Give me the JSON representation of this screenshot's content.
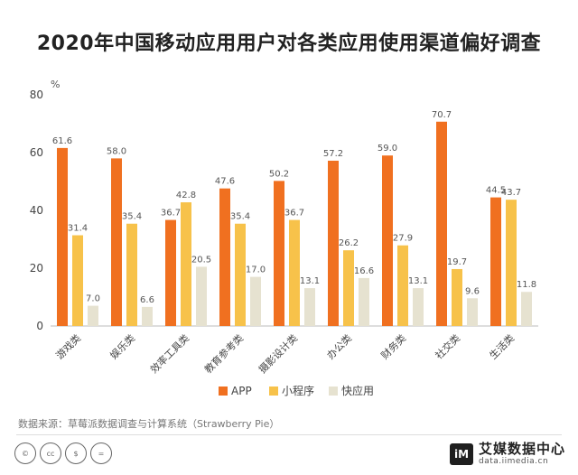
{
  "title": "2020年中国移动应用用户对各类应用使用渠道偏好调查",
  "source_note": "数据来源：草莓派数据调查与计算系统（Strawberry  Pie）",
  "brand": {
    "name": "艾媒数据中心",
    "url": "data.iimedia.cn"
  },
  "cc_icons": [
    "©",
    "cc",
    "$",
    "="
  ],
  "chart_data": {
    "type": "bar",
    "title": "2020年中国移动应用用户对各类应用使用渠道偏好调查",
    "ylabel": "%",
    "xlabel": "",
    "ylim": [
      0,
      80
    ],
    "yticks": [
      0,
      20,
      40,
      60,
      80
    ],
    "grid": false,
    "legend_position": "bottom",
    "categories": [
      "游戏类",
      "娱乐类",
      "效率工具类",
      "教育参考类",
      "摄影设计类",
      "办公类",
      "财务类",
      "社交类",
      "生活类"
    ],
    "series": [
      {
        "name": "APP",
        "color": "#f07020",
        "values": [
          61.6,
          58.0,
          36.7,
          47.6,
          50.2,
          57.2,
          59.0,
          70.7,
          44.5
        ]
      },
      {
        "name": "小程序",
        "color": "#f7c24a",
        "values": [
          31.4,
          35.4,
          42.8,
          35.4,
          36.7,
          26.2,
          27.9,
          19.7,
          43.7
        ]
      },
      {
        "name": "快应用",
        "color": "#e6e2d0",
        "values": [
          7.0,
          6.6,
          20.5,
          17.0,
          13.1,
          16.6,
          13.1,
          9.6,
          11.8
        ]
      }
    ]
  }
}
